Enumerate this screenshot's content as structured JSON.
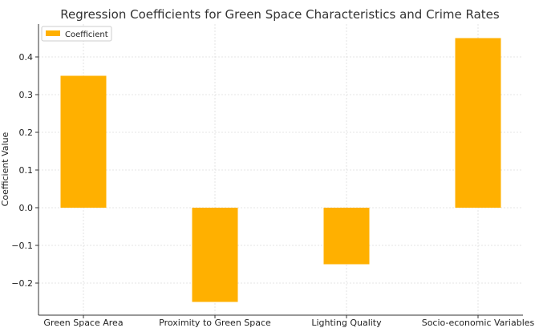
{
  "chart_data": {
    "type": "bar",
    "title": "Regression Coefficients for Green Space Characteristics and Crime Rates",
    "xlabel": "",
    "ylabel": "Coefficient Value",
    "categories": [
      "Green Space Area",
      "Proximity to Green Space",
      "Lighting Quality",
      "Socio-economic Variables"
    ],
    "series": [
      {
        "name": "Coefficient",
        "values": [
          0.35,
          -0.25,
          -0.15,
          0.45
        ],
        "color": "#FFB000"
      }
    ],
    "ylim": [
      -0.28,
      0.48
    ],
    "yticks": [
      -0.2,
      -0.1,
      0.0,
      0.1,
      0.2,
      0.3,
      0.4
    ],
    "ytick_labels": [
      "−0.2",
      "−0.1",
      "0.0",
      "0.1",
      "0.2",
      "0.3",
      "0.4"
    ],
    "grid": true,
    "legend_position": "top-left"
  }
}
